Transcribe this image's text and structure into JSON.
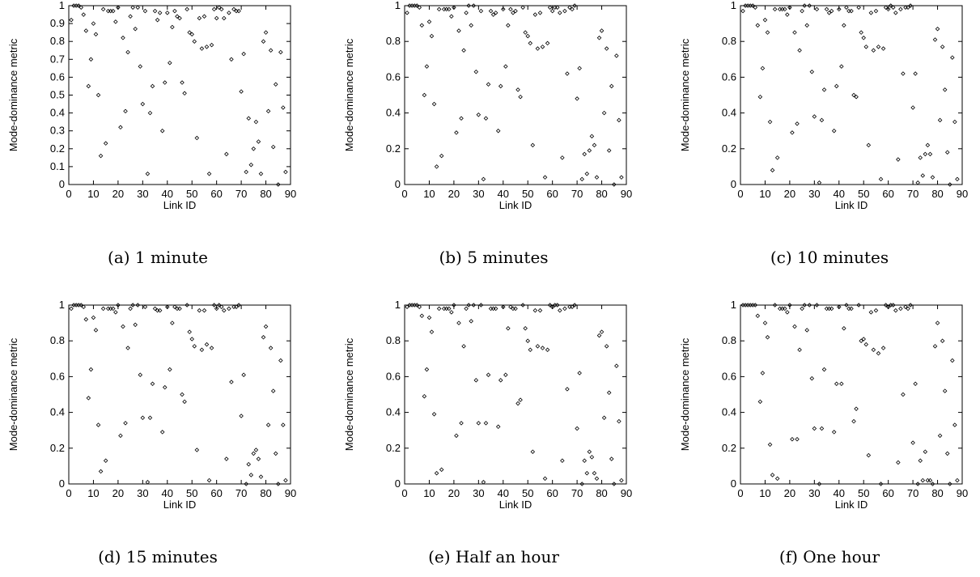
{
  "chart_data": [
    {
      "type": "scatter",
      "caption": "(a) 1 minute",
      "xlabel": "Link ID",
      "ylabel": "Mode-dominance metric",
      "xlim": [
        0,
        90
      ],
      "ylim": [
        0,
        1
      ],
      "xticks": [
        "0",
        "10",
        "20",
        "30",
        "40",
        "50",
        "60",
        "70",
        "80",
        "90"
      ],
      "yticks": [
        "0",
        "0.1",
        "0.2",
        "0.3",
        "0.4",
        "0.5",
        "0.6",
        "0.7",
        "0.8",
        "0.9",
        "1"
      ],
      "grid": false,
      "x": [
        1,
        2,
        3,
        4,
        5,
        6,
        7,
        8,
        9,
        10,
        11,
        12,
        13,
        14,
        15,
        16,
        17,
        18,
        19,
        20,
        21,
        22,
        23,
        24,
        25,
        26,
        27,
        28,
        29,
        30,
        31,
        32,
        33,
        34,
        35,
        36,
        37,
        38,
        39,
        40,
        41,
        42,
        43,
        44,
        45,
        46,
        47,
        48,
        49,
        50,
        51,
        52,
        53,
        54,
        55,
        56,
        57,
        58,
        59,
        60,
        61,
        62,
        63,
        64,
        65,
        66,
        67,
        68,
        69,
        70,
        71,
        72,
        73,
        74,
        75,
        76,
        77,
        78,
        79,
        80,
        81,
        82,
        83,
        84,
        85,
        86,
        87,
        88
      ],
      "y": [
        0.92,
        1,
        1,
        1,
        0.99,
        0.95,
        0.86,
        0.55,
        0.7,
        0.9,
        0.84,
        0.5,
        0.16,
        0.98,
        0.23,
        0.97,
        0.97,
        0.97,
        0.91,
        0.99,
        0.32,
        0.82,
        0.41,
        0.74,
        0.94,
        0.99,
        0.87,
        0.99,
        0.66,
        0.45,
        0.97,
        0.06,
        0.4,
        0.55,
        0.97,
        0.92,
        0.96,
        0.3,
        0.57,
        0.96,
        0.68,
        0.88,
        0.97,
        0.94,
        0.93,
        0.57,
        0.51,
        0.98,
        0.85,
        0.84,
        0.8,
        0.26,
        0.93,
        0.76,
        0.94,
        0.77,
        0.06,
        0.78,
        0.98,
        0.93,
        0.99,
        0.98,
        0.93,
        0.17,
        0.96,
        0.7,
        0.98,
        0.97,
        0.97,
        0.52,
        0.73,
        0.07,
        0.37,
        0.11,
        0.2,
        0.35,
        0.24,
        0.06,
        0.8,
        0.85,
        0.41,
        0.75,
        0.21,
        0.56,
        0.0,
        0.74,
        0.43,
        0.07
      ]
    },
    {
      "type": "scatter",
      "caption": "(b) 5 minutes",
      "xlabel": "Link ID",
      "ylabel": "Mode-dominance metric",
      "xlim": [
        0,
        90
      ],
      "ylim": [
        0,
        1
      ],
      "xticks": [
        "0",
        "10",
        "20",
        "30",
        "40",
        "50",
        "60",
        "70",
        "80",
        "90"
      ],
      "yticks": [
        "0",
        "0.2",
        "0.4",
        "0.6",
        "0.8",
        "1"
      ],
      "grid": false,
      "x": [
        1,
        2,
        3,
        4,
        5,
        6,
        7,
        8,
        9,
        10,
        11,
        12,
        13,
        14,
        15,
        16,
        17,
        18,
        19,
        20,
        21,
        22,
        23,
        24,
        25,
        26,
        27,
        28,
        29,
        30,
        31,
        32,
        33,
        34,
        35,
        36,
        37,
        38,
        39,
        40,
        41,
        42,
        43,
        44,
        45,
        46,
        47,
        48,
        49,
        50,
        51,
        52,
        53,
        54,
        55,
        56,
        57,
        58,
        59,
        60,
        61,
        62,
        63,
        64,
        65,
        66,
        67,
        68,
        69,
        70,
        71,
        72,
        73,
        74,
        75,
        76,
        77,
        78,
        79,
        80,
        81,
        82,
        83,
        84,
        85,
        86,
        87,
        88
      ],
      "y": [
        0.96,
        1,
        1,
        1,
        1,
        0.99,
        0.89,
        0.5,
        0.66,
        0.91,
        0.83,
        0.45,
        0.1,
        0.98,
        0.16,
        0.98,
        0.98,
        0.98,
        0.94,
        0.99,
        0.29,
        0.86,
        0.37,
        0.75,
        0.96,
        1,
        0.89,
        1,
        0.63,
        0.39,
        0.97,
        0.03,
        0.37,
        0.56,
        0.97,
        0.95,
        0.96,
        0.3,
        0.55,
        0.98,
        0.66,
        0.89,
        0.98,
        0.96,
        0.97,
        0.53,
        0.49,
        0.99,
        0.85,
        0.83,
        0.79,
        0.22,
        0.95,
        0.76,
        0.96,
        0.77,
        0.04,
        0.79,
        0.99,
        0.97,
        0.99,
        0.99,
        0.96,
        0.15,
        0.97,
        0.62,
        0.99,
        0.98,
        1,
        0.48,
        0.65,
        0.03,
        0.17,
        0.06,
        0.19,
        0.27,
        0.22,
        0.04,
        0.82,
        0.86,
        0.4,
        0.76,
        0.19,
        0.55,
        0.0,
        0.72,
        0.36,
        0.04
      ]
    },
    {
      "type": "scatter",
      "caption": "(c) 10 minutes",
      "xlabel": "Link ID",
      "ylabel": "Mode-dominance metric",
      "xlim": [
        0,
        90
      ],
      "ylim": [
        0,
        1
      ],
      "xticks": [
        "0",
        "10",
        "20",
        "30",
        "40",
        "50",
        "60",
        "70",
        "80",
        "90"
      ],
      "yticks": [
        "0",
        "0.2",
        "0.4",
        "0.6",
        "0.8",
        "1"
      ],
      "grid": false,
      "x": [
        1,
        2,
        3,
        4,
        5,
        6,
        7,
        8,
        9,
        10,
        11,
        12,
        13,
        14,
        15,
        16,
        17,
        18,
        19,
        20,
        21,
        22,
        23,
        24,
        25,
        26,
        27,
        28,
        29,
        30,
        31,
        32,
        33,
        34,
        35,
        36,
        37,
        38,
        39,
        40,
        41,
        42,
        43,
        44,
        45,
        46,
        47,
        48,
        49,
        50,
        51,
        52,
        53,
        54,
        55,
        56,
        57,
        58,
        59,
        60,
        61,
        62,
        63,
        64,
        65,
        66,
        67,
        68,
        69,
        70,
        71,
        72,
        73,
        74,
        75,
        76,
        77,
        78,
        79,
        80,
        81,
        82,
        83,
        84,
        85,
        86,
        87,
        88
      ],
      "y": [
        0.97,
        1,
        1,
        1,
        1,
        0.99,
        0.89,
        0.49,
        0.65,
        0.92,
        0.85,
        0.35,
        0.08,
        0.98,
        0.15,
        0.98,
        0.98,
        0.98,
        0.95,
        0.99,
        0.29,
        0.85,
        0.34,
        0.75,
        0.97,
        1,
        0.89,
        1,
        0.63,
        0.38,
        0.98,
        0.01,
        0.36,
        0.53,
        0.98,
        0.96,
        0.97,
        0.3,
        0.55,
        0.98,
        0.66,
        0.89,
        0.99,
        0.97,
        0.97,
        0.5,
        0.49,
        0.99,
        0.85,
        0.82,
        0.77,
        0.22,
        0.96,
        0.75,
        0.97,
        0.77,
        0.03,
        0.76,
        0.99,
        0.98,
        1,
        0.99,
        0.96,
        0.14,
        0.98,
        0.62,
        0.99,
        0.99,
        1,
        0.43,
        0.62,
        0.01,
        0.15,
        0.05,
        0.17,
        0.22,
        0.17,
        0.04,
        0.81,
        0.87,
        0.36,
        0.77,
        0.53,
        0.18,
        0.0,
        0.71,
        0.35,
        0.03
      ]
    },
    {
      "type": "scatter",
      "caption": "(d) 15 minutes",
      "xlabel": "Link ID",
      "ylabel": "Mode-dominance metric",
      "xlim": [
        0,
        90
      ],
      "ylim": [
        0,
        1
      ],
      "xticks": [
        "0",
        "10",
        "20",
        "30",
        "40",
        "50",
        "60",
        "70",
        "80",
        "90"
      ],
      "yticks": [
        "0",
        "0.2",
        "0.4",
        "0.6",
        "0.8",
        "1"
      ],
      "grid": false,
      "x": [
        1,
        2,
        3,
        4,
        5,
        6,
        7,
        8,
        9,
        10,
        11,
        12,
        13,
        14,
        15,
        16,
        17,
        18,
        19,
        20,
        21,
        22,
        23,
        24,
        25,
        26,
        27,
        28,
        29,
        30,
        31,
        32,
        33,
        34,
        35,
        36,
        37,
        38,
        39,
        40,
        41,
        42,
        43,
        44,
        45,
        46,
        47,
        48,
        49,
        50,
        51,
        52,
        53,
        54,
        55,
        56,
        57,
        58,
        59,
        60,
        61,
        62,
        63,
        64,
        65,
        66,
        67,
        68,
        69,
        70,
        71,
        72,
        73,
        74,
        75,
        76,
        77,
        78,
        79,
        80,
        81,
        82,
        83,
        84,
        85,
        86,
        87,
        88
      ],
      "y": [
        0.98,
        1,
        1,
        1,
        1,
        0.99,
        0.92,
        0.48,
        0.64,
        0.93,
        0.86,
        0.33,
        0.07,
        0.98,
        0.13,
        0.98,
        0.98,
        0.98,
        0.96,
        1,
        0.27,
        0.88,
        0.34,
        0.76,
        0.98,
        1,
        0.89,
        1,
        0.61,
        0.37,
        0.99,
        0.01,
        0.37,
        0.56,
        0.98,
        0.97,
        0.97,
        0.29,
        0.54,
        0.99,
        0.64,
        0.9,
        0.99,
        0.98,
        0.98,
        0.5,
        0.46,
        1,
        0.85,
        0.81,
        0.77,
        0.19,
        0.97,
        0.75,
        0.97,
        0.78,
        0.02,
        0.76,
        1,
        0.98,
        1,
        0.99,
        0.97,
        0.14,
        0.98,
        0.57,
        0.99,
        0.99,
        1,
        0.38,
        0.61,
        0.0,
        0.11,
        0.05,
        0.17,
        0.19,
        0.14,
        0.04,
        0.82,
        0.88,
        0.33,
        0.76,
        0.52,
        0.17,
        0.0,
        0.69,
        0.33,
        0.02
      ]
    },
    {
      "type": "scatter",
      "caption": "(e) Half an hour",
      "xlabel": "Link ID",
      "ylabel": "Mode-dominance metric",
      "xlim": [
        0,
        90
      ],
      "ylim": [
        0,
        1
      ],
      "xticks": [
        "0",
        "10",
        "20",
        "30",
        "40",
        "50",
        "60",
        "70",
        "80",
        "90"
      ],
      "yticks": [
        "0",
        "0.2",
        "0.4",
        "0.6",
        "0.8",
        "1"
      ],
      "grid": false,
      "x": [
        1,
        2,
        3,
        4,
        5,
        6,
        7,
        8,
        9,
        10,
        11,
        12,
        13,
        14,
        15,
        16,
        17,
        18,
        19,
        20,
        21,
        22,
        23,
        24,
        25,
        26,
        27,
        28,
        29,
        30,
        31,
        32,
        33,
        34,
        35,
        36,
        37,
        38,
        39,
        40,
        41,
        42,
        43,
        44,
        45,
        46,
        47,
        48,
        49,
        50,
        51,
        52,
        53,
        54,
        55,
        56,
        57,
        58,
        59,
        60,
        61,
        62,
        63,
        64,
        65,
        66,
        67,
        68,
        69,
        70,
        71,
        72,
        73,
        74,
        75,
        76,
        77,
        78,
        79,
        80,
        81,
        82,
        83,
        84,
        85,
        86,
        87,
        88
      ],
      "y": [
        0.99,
        1,
        1,
        1,
        1,
        0.99,
        0.94,
        0.49,
        0.64,
        0.93,
        0.85,
        0.39,
        0.06,
        0.98,
        0.08,
        0.98,
        0.98,
        0.98,
        0.96,
        1,
        0.27,
        0.9,
        0.34,
        0.77,
        0.98,
        1,
        0.91,
        1,
        0.58,
        0.34,
        1,
        0.01,
        0.34,
        0.61,
        0.98,
        0.98,
        0.98,
        0.32,
        0.58,
        0.99,
        0.61,
        0.87,
        0.99,
        0.98,
        0.98,
        0.45,
        0.47,
        1,
        0.87,
        0.8,
        0.75,
        0.18,
        0.97,
        0.77,
        0.97,
        0.76,
        0.03,
        0.75,
        1,
        0.99,
        1,
        1,
        0.97,
        0.13,
        0.98,
        0.53,
        0.99,
        0.99,
        1,
        0.31,
        0.62,
        0.0,
        0.13,
        0.06,
        0.18,
        0.15,
        0.06,
        0.03,
        0.83,
        0.85,
        0.37,
        0.77,
        0.51,
        0.14,
        0.0,
        0.66,
        0.35,
        0.02
      ]
    },
    {
      "type": "scatter",
      "caption": "(f) One hour",
      "xlabel": "Link ID",
      "ylabel": "Mode-dominance metric",
      "xlim": [
        0,
        90
      ],
      "ylim": [
        0,
        1
      ],
      "xticks": [
        "0",
        "10",
        "20",
        "30",
        "40",
        "50",
        "60",
        "70",
        "80",
        "90"
      ],
      "yticks": [
        "0",
        "0.2",
        "0.4",
        "0.6",
        "0.8",
        "1"
      ],
      "grid": false,
      "x": [
        1,
        2,
        3,
        4,
        5,
        6,
        7,
        8,
        9,
        10,
        11,
        12,
        13,
        14,
        15,
        16,
        17,
        18,
        19,
        20,
        21,
        22,
        23,
        24,
        25,
        26,
        27,
        28,
        29,
        30,
        31,
        32,
        33,
        34,
        35,
        36,
        37,
        38,
        39,
        40,
        41,
        42,
        43,
        44,
        45,
        46,
        47,
        48,
        49,
        50,
        51,
        52,
        53,
        54,
        55,
        56,
        57,
        58,
        59,
        60,
        61,
        62,
        63,
        64,
        65,
        66,
        67,
        68,
        69,
        70,
        71,
        72,
        73,
        74,
        75,
        76,
        77,
        78,
        79,
        80,
        81,
        82,
        83,
        84,
        85,
        86,
        87,
        88
      ],
      "y": [
        1,
        1,
        1,
        1,
        1,
        1,
        0.94,
        0.46,
        0.62,
        0.9,
        0.82,
        0.22,
        0.05,
        1,
        0.03,
        0.98,
        0.98,
        0.98,
        0.96,
        1,
        0.25,
        0.88,
        0.25,
        0.75,
        0.98,
        1,
        0.86,
        1,
        0.59,
        0.31,
        1,
        0.0,
        0.31,
        0.64,
        0.98,
        0.98,
        0.98,
        0.29,
        0.56,
        0.99,
        0.56,
        0.87,
        1,
        0.98,
        0.98,
        0.35,
        0.42,
        1,
        0.8,
        0.81,
        0.78,
        0.16,
        0.96,
        0.75,
        0.97,
        0.73,
        0.0,
        0.76,
        1,
        0.99,
        1,
        1,
        0.97,
        0.12,
        0.98,
        0.5,
        0.99,
        0.98,
        1,
        0.23,
        0.56,
        0.0,
        0.13,
        0.02,
        0.18,
        0.02,
        0.02,
        0.0,
        0.77,
        0.9,
        0.27,
        0.8,
        0.52,
        0.17,
        0.0,
        0.69,
        0.33,
        0.02
      ]
    }
  ]
}
